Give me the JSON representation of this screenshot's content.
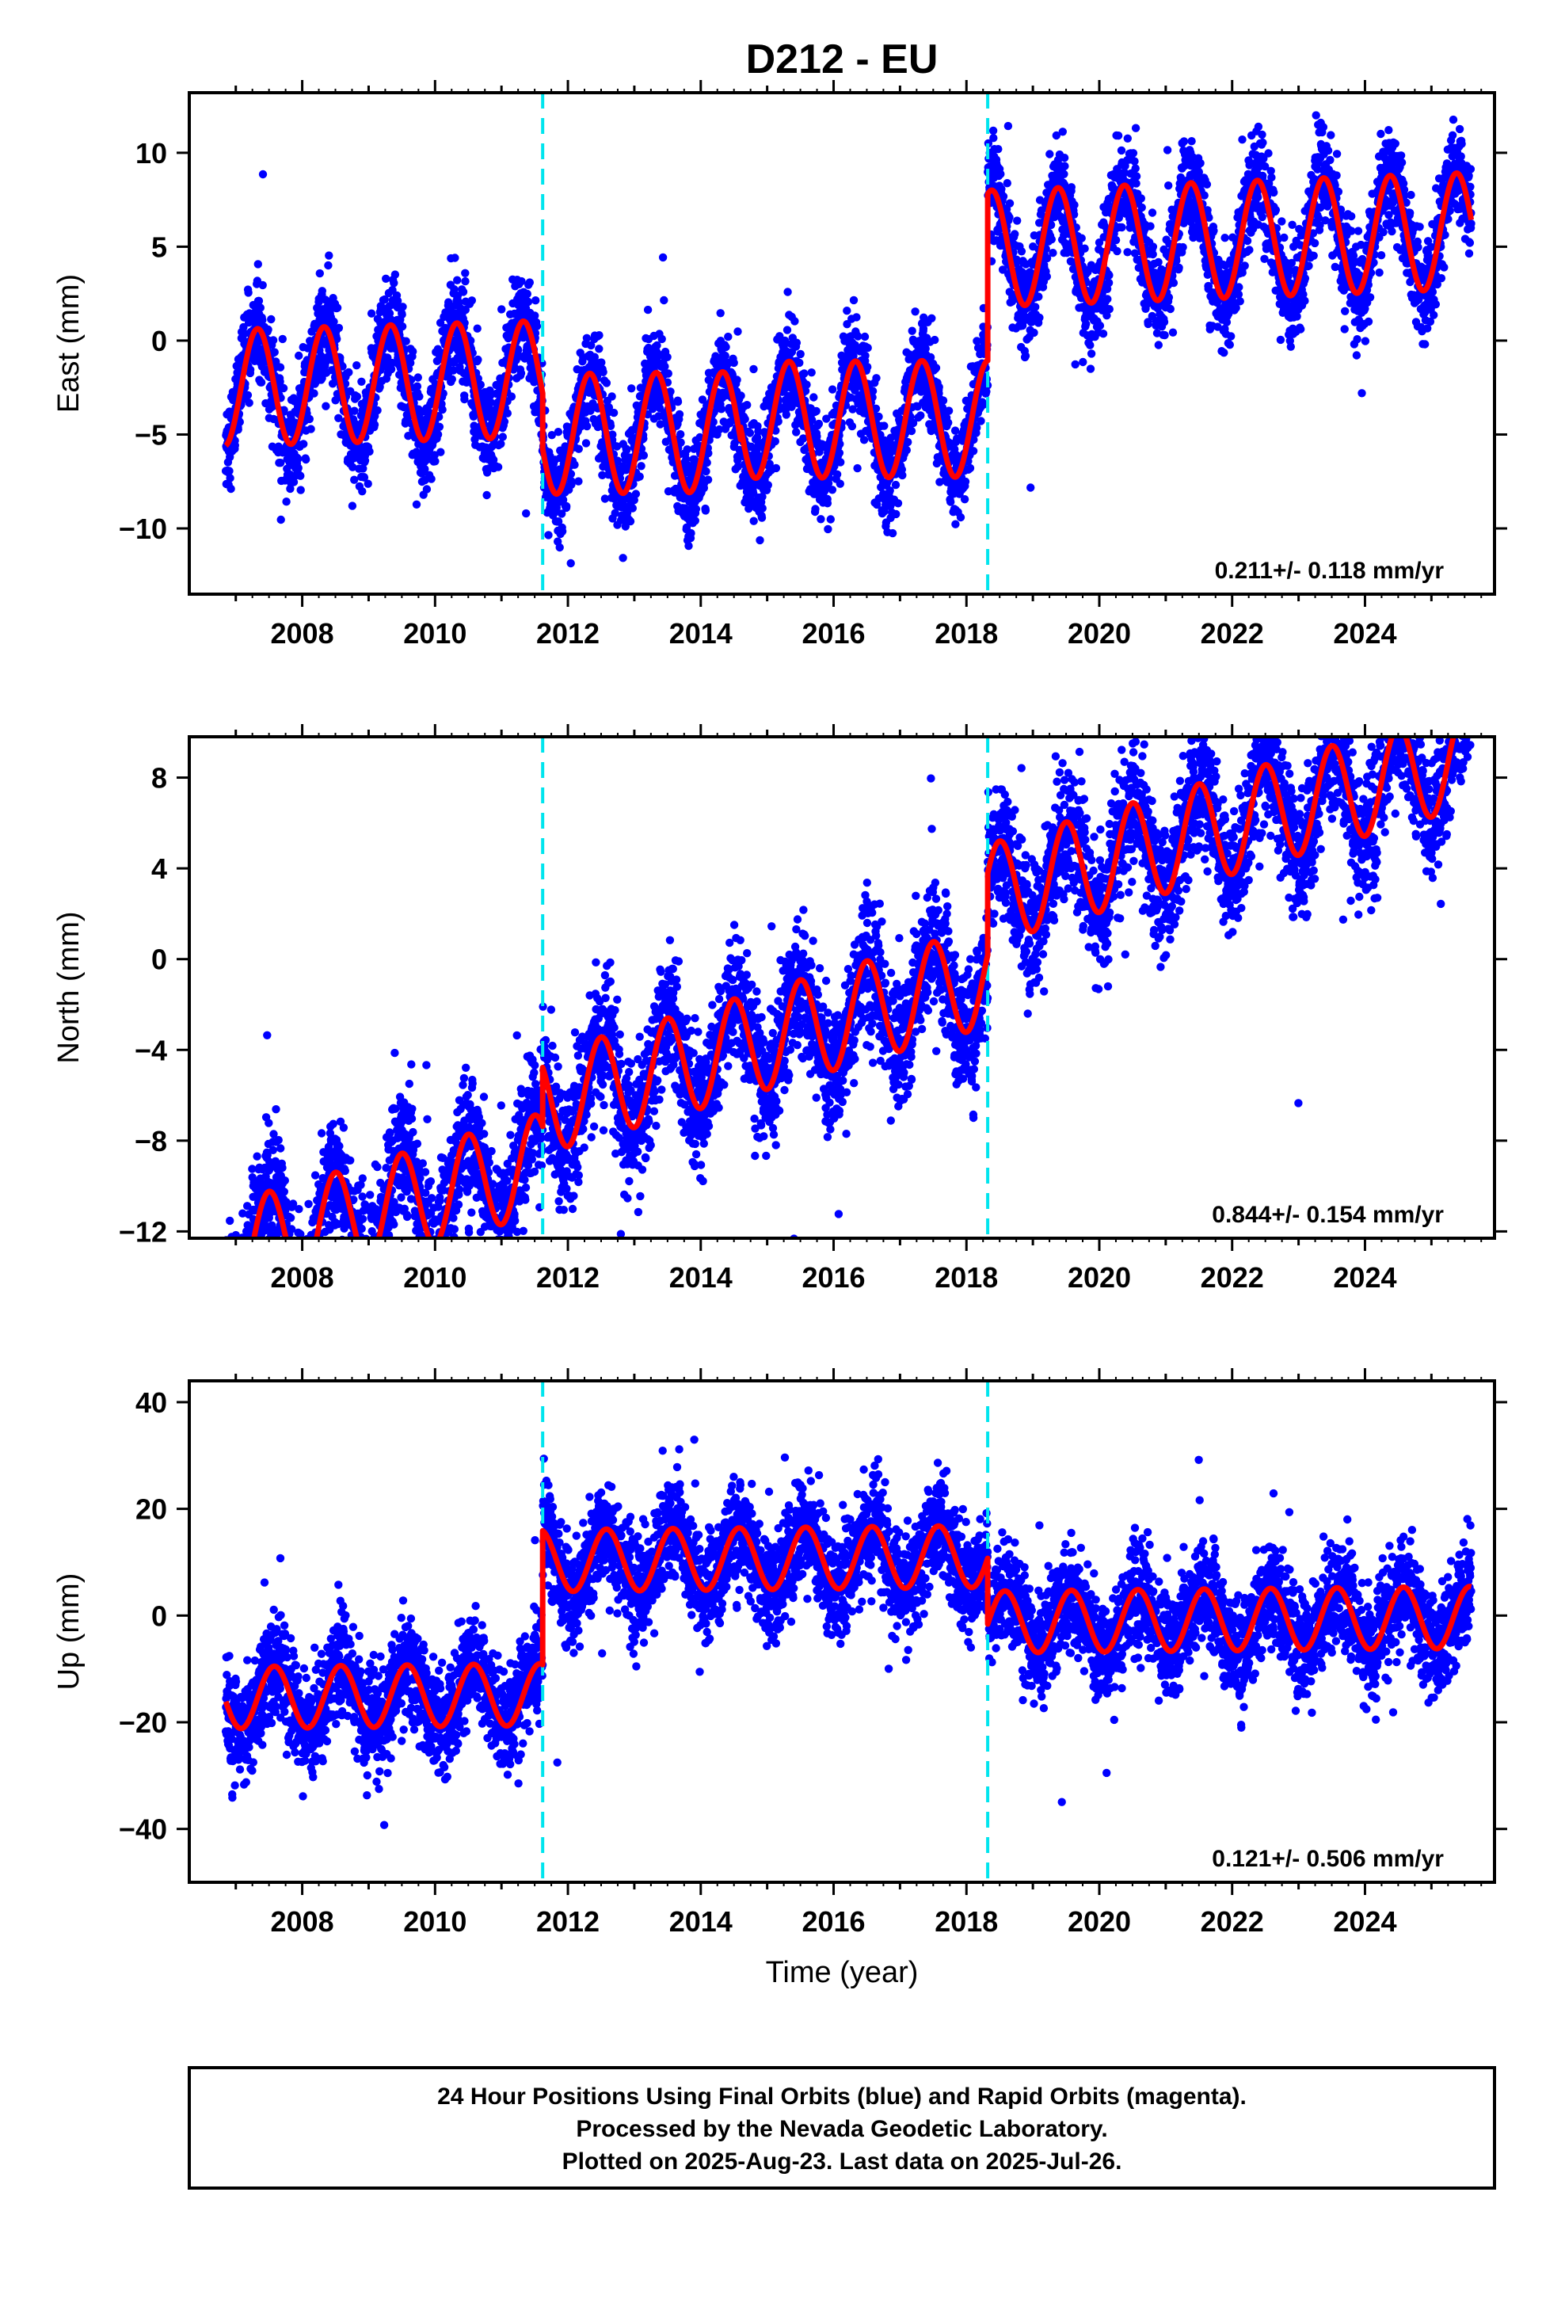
{
  "title": "D212 - EU",
  "colors": {
    "data": "#0000ff",
    "fit": "#ff0000",
    "break": "#00e5ee",
    "frame": "#000000"
  },
  "chart_data": [
    {
      "type": "scatter",
      "name": "east",
      "ylabel": "East (mm)",
      "ylim": [
        -13.5,
        13.2
      ],
      "yticks": [
        -10,
        -5,
        0,
        5,
        10
      ],
      "ytick_labels": [
        "−10",
        "−5",
        "0",
        "5",
        "10"
      ],
      "xlim": [
        2006.3,
        2025.95
      ],
      "xticks": [
        2008,
        2010,
        2012,
        2014,
        2016,
        2018,
        2020,
        2022,
        2024
      ],
      "xtick_labels": [
        "2008",
        "2010",
        "2012",
        "2014",
        "2016",
        "2018",
        "2020",
        "2022",
        "2024"
      ],
      "breaks": [
        2011.62,
        2018.32
      ],
      "rate_label": "0.211+/- 0.118 mm/yr",
      "fit_segments": [
        {
          "x0": 2006.85,
          "x1": 2011.62,
          "offset": -1.6,
          "slope": 0.1,
          "amplitude": 3.1,
          "phase": 0.33
        },
        {
          "x0": 2011.62,
          "x1": 2014.6,
          "offset": -4.8,
          "slope": 0.04,
          "amplitude": 3.2,
          "phase": 0.33
        },
        {
          "x0": 2014.6,
          "x1": 2018.32,
          "offset": -4.2,
          "slope": 0.02,
          "amplitude": 3.1,
          "phase": 0.33
        },
        {
          "x0": 2018.32,
          "x1": 2025.6,
          "offset": 4.6,
          "slope": 0.13,
          "amplitude": 3.1,
          "phase": 0.38
        }
      ],
      "scatter_noise": 1.3
    },
    {
      "type": "scatter",
      "name": "north",
      "ylabel": "North (mm)",
      "ylim": [
        -12.3,
        9.8
      ],
      "yticks": [
        -12,
        -8,
        -4,
        0,
        4,
        8
      ],
      "ytick_labels": [
        "−12",
        "−8",
        "−4",
        "0",
        "4",
        "8"
      ],
      "xlim": [
        2006.3,
        2025.95
      ],
      "xticks": [
        2008,
        2010,
        2012,
        2014,
        2016,
        2018,
        2020,
        2022,
        2024
      ],
      "xtick_labels": [
        "2008",
        "2010",
        "2012",
        "2014",
        "2016",
        "2018",
        "2020",
        "2022",
        "2024"
      ],
      "breaks": [
        2011.62,
        2018.32
      ],
      "rate_label": "0.844+/- 0.154 mm/yr",
      "fit_segments": [
        {
          "x0": 2006.85,
          "x1": 2011.62,
          "offset": -5.3,
          "slope": 0.84,
          "amplitude": 2.2,
          "phase": 0.5
        },
        {
          "x0": 2011.62,
          "x1": 2018.32,
          "offset": -2.7,
          "slope": 0.84,
          "amplitude": 2.2,
          "phase": 0.5
        },
        {
          "x0": 2018.32,
          "x1": 2025.6,
          "offset": 0.9,
          "slope": 0.84,
          "amplitude": 2.2,
          "phase": 0.5
        }
      ],
      "scatter_noise": 1.4
    },
    {
      "type": "scatter",
      "name": "up",
      "ylabel": "Up (mm)",
      "xlabel": "Time (year)",
      "ylim": [
        -50,
        44
      ],
      "yticks": [
        -40,
        -20,
        0,
        20,
        40
      ],
      "ytick_labels": [
        "−40",
        "−20",
        "0",
        "20",
        "40"
      ],
      "xlim": [
        2006.3,
        2025.95
      ],
      "xticks": [
        2008,
        2010,
        2012,
        2014,
        2016,
        2018,
        2020,
        2022,
        2024
      ],
      "xtick_labels": [
        "2008",
        "2010",
        "2012",
        "2014",
        "2016",
        "2018",
        "2020",
        "2022",
        "2024"
      ],
      "breaks": [
        2011.62,
        2018.32
      ],
      "rate_label": "0.121+/- 0.506 mm/yr",
      "fit_segments": [
        {
          "x0": 2006.85,
          "x1": 2011.62,
          "offset": -14.3,
          "slope": 0.12,
          "amplitude": 5.8,
          "phase": 0.58
        },
        {
          "x0": 2011.62,
          "x1": 2018.32,
          "offset": 10.8,
          "slope": 0.12,
          "amplitude": 5.8,
          "phase": 0.58
        },
        {
          "x0": 2018.32,
          "x1": 2025.6,
          "offset": -1.5,
          "slope": 0.12,
          "amplitude": 5.8,
          "phase": 0.58
        }
      ],
      "scatter_noise": 4.8
    }
  ],
  "footer": {
    "line1": "24 Hour Positions Using Final Orbits (blue) and Rapid Orbits (magenta).",
    "line2": "Processed by the Nevada Geodetic Laboratory.",
    "line3": "Plotted on 2025-Aug-23. Last data on 2025-Jul-26."
  }
}
